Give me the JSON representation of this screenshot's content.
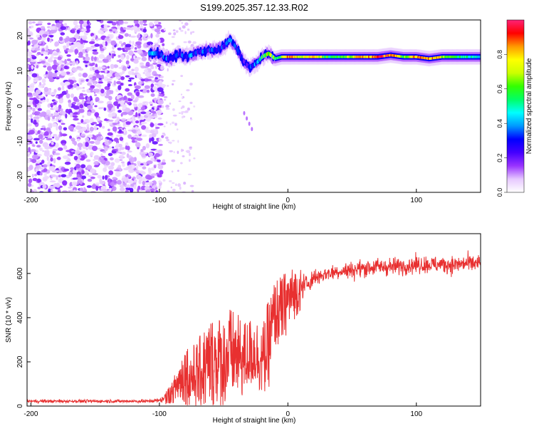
{
  "title": "S199.2025.357.12.33.R02",
  "chart_data": [
    {
      "type": "heatmap",
      "xlabel": "Height of straight line (km)",
      "ylabel": "Frequency (Hz)",
      "xlim": [
        -203,
        150
      ],
      "ylim": [
        -24.5,
        24.5
      ],
      "x_ticks": [
        -200,
        -100,
        0,
        100
      ],
      "x_tick_labels": [
        "-200",
        "-100",
        "0",
        "100"
      ],
      "y_ticks": [
        -20,
        -10,
        0,
        10,
        20
      ],
      "y_tick_labels": [
        "-20",
        "-10",
        "0",
        "10",
        "20"
      ],
      "grid": false,
      "colorbar": {
        "label": "Normalized spectral amplitude",
        "range": [
          0.0,
          1.0
        ],
        "ticks": [
          0.0,
          0.2,
          0.4,
          0.6,
          0.8
        ],
        "tick_labels": [
          "0.0",
          "0.2",
          "0.4",
          "0.6",
          "0.8"
        ],
        "colormap": [
          "#ffffff",
          "#e6c8ff",
          "#9933ff",
          "#4400ff",
          "#0000ff",
          "#0099ff",
          "#00ffff",
          "#00ff66",
          "#33ff00",
          "#ccff00",
          "#ffff00",
          "#ff9900",
          "#ff0000",
          "#ff2277"
        ]
      },
      "noise_region": {
        "x_range": [
          -203,
          -97
        ],
        "y_range": [
          -24.5,
          24.5
        ],
        "typical_amplitude": 0.15
      },
      "ridge": {
        "x": [
          -108,
          -100,
          -95,
          -90,
          -85,
          -80,
          -75,
          -70,
          -65,
          -60,
          -55,
          -50,
          -45,
          -40,
          -35,
          -30,
          -25,
          -20,
          -15,
          -10,
          -5,
          0,
          10,
          20,
          30,
          40,
          50,
          60,
          70,
          80,
          90,
          100,
          110,
          120,
          130,
          140,
          150
        ],
        "frequency": [
          15,
          15,
          13.5,
          13.5,
          15,
          14,
          14.5,
          15.5,
          15.5,
          16,
          16,
          17,
          19,
          16.5,
          13,
          11,
          12,
          14,
          15,
          13.5,
          14,
          14,
          14,
          14,
          14,
          14,
          14,
          14,
          14,
          14.5,
          14,
          14,
          13.5,
          14,
          14,
          14,
          14
        ],
        "peak_amplitude": [
          0.4,
          0.3,
          0.35,
          0.25,
          0.3,
          0.3,
          0.35,
          0.3,
          0.3,
          0.3,
          0.35,
          0.3,
          0.35,
          0.3,
          0.25,
          0.3,
          0.35,
          0.5,
          0.7,
          0.5,
          0.6,
          0.85,
          0.7,
          0.8,
          0.6,
          0.55,
          0.75,
          0.8,
          0.85,
          0.9,
          0.6,
          0.85,
          0.9,
          0.7,
          0.55,
          0.5,
          0.45
        ]
      }
    },
    {
      "type": "line",
      "xlabel": "Height of straight line (km)",
      "ylabel": "SNR (10 * v/v)",
      "xlim": [
        -203,
        150
      ],
      "ylim": [
        0,
        780
      ],
      "x_ticks": [
        -200,
        -100,
        0,
        100
      ],
      "x_tick_labels": [
        "-200",
        "-100",
        "0",
        "100"
      ],
      "y_ticks": [
        0,
        200,
        400,
        600
      ],
      "y_tick_labels": [
        "0",
        "200",
        "400",
        "600"
      ],
      "grid": false,
      "series": [
        {
          "color": "#e83030",
          "envelope_x": [
            -203,
            -110,
            -100,
            -95,
            -90,
            -85,
            -80,
            -75,
            -70,
            -65,
            -60,
            -55,
            -50,
            -45,
            -40,
            -35,
            -30,
            -25,
            -20,
            -15,
            -10,
            -5,
            0,
            5,
            10,
            20,
            30,
            40,
            50,
            60,
            70,
            80,
            90,
            100,
            110,
            120,
            130,
            140,
            150
          ],
          "envelope_mean": [
            22,
            22,
            25,
            40,
            60,
            110,
            150,
            130,
            140,
            170,
            200,
            210,
            200,
            240,
            230,
            210,
            240,
            250,
            200,
            280,
            420,
            430,
            480,
            510,
            530,
            580,
            600,
            610,
            615,
            625,
            630,
            630,
            635,
            640,
            640,
            640,
            640,
            645,
            645
          ],
          "envelope_spread": [
            15,
            15,
            20,
            40,
            60,
            120,
            180,
            180,
            200,
            240,
            260,
            260,
            260,
            260,
            240,
            220,
            200,
            200,
            200,
            260,
            200,
            200,
            180,
            150,
            120,
            80,
            70,
            70,
            80,
            80,
            80,
            80,
            80,
            80,
            80,
            80,
            80,
            80,
            80
          ]
        }
      ]
    }
  ]
}
